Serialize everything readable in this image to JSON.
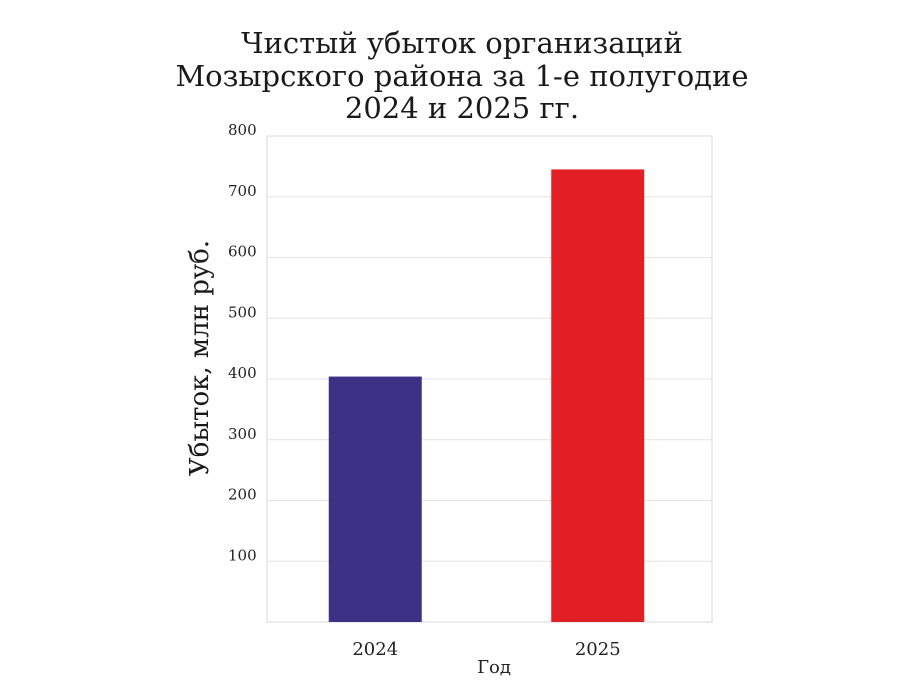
{
  "chart_data": {
    "type": "bar",
    "title_lines": [
      "Чистый убыток организаций",
      "Мозырского района за 1-е полугодие",
      "2024 и 2025 гг."
    ],
    "xlabel": "Год",
    "ylabel": "Убыток, млн руб.",
    "categories": [
      "2024",
      "2025"
    ],
    "values": [
      404,
      745
    ],
    "bar_colors": [
      "#3b3285",
      "#e31f26"
    ],
    "ylim": [
      0,
      800
    ],
    "yticks": [
      100,
      200,
      300,
      400,
      500,
      600,
      700,
      800
    ],
    "ytick_labels": [
      "100",
      "200",
      "300",
      "400",
      "500",
      "600",
      "700",
      "800"
    ],
    "grid": true,
    "legend": "none"
  }
}
